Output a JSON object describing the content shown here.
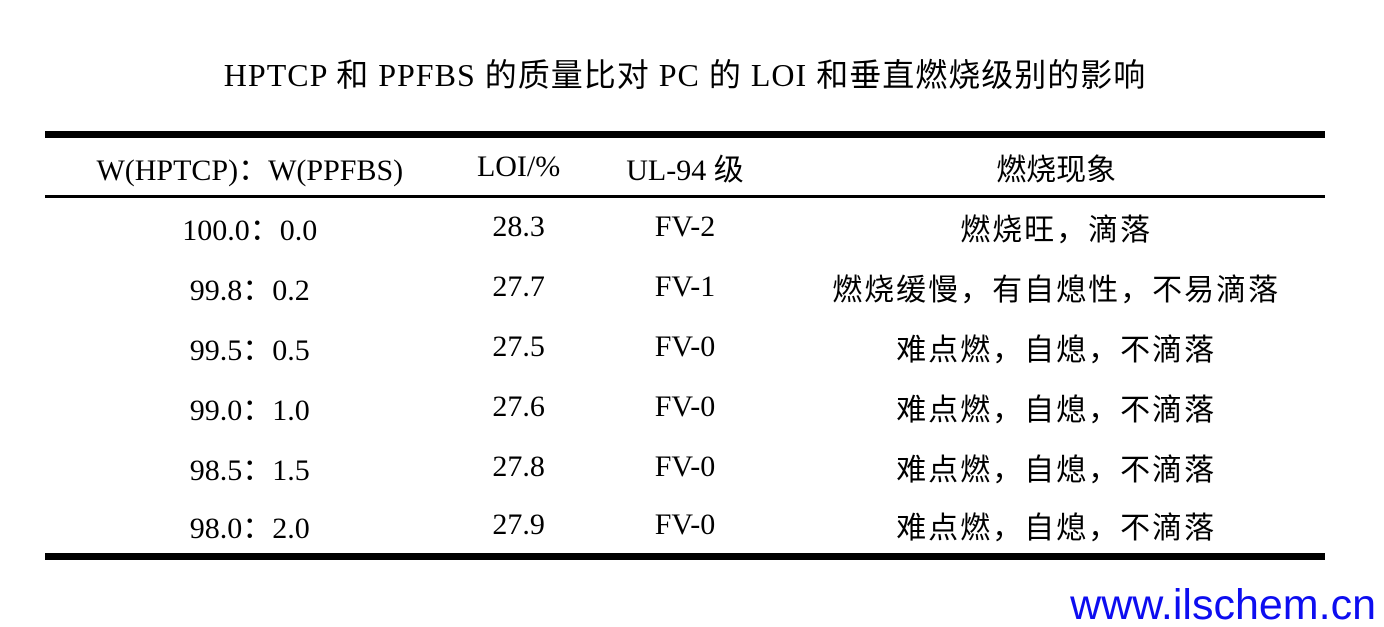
{
  "title": "HPTCP 和 PPFBS 的质量比对 PC 的 LOI 和垂直燃烧级别的影响",
  "table": {
    "headers": [
      "W(HPTCP)：W(PPFBS)",
      "LOI/%",
      "UL-94 级",
      "燃烧现象"
    ],
    "rows": [
      {
        "ratio": "100.0：0.0",
        "loi": "28.3",
        "ul94": "FV-2",
        "phenomenon": "燃烧旺，滴落"
      },
      {
        "ratio": "99.8：0.2",
        "loi": "27.7",
        "ul94": "FV-1",
        "phenomenon": "燃烧缓慢，有自熄性，不易滴落"
      },
      {
        "ratio": "99.5：0.5",
        "loi": "27.5",
        "ul94": "FV-0",
        "phenomenon": "难点燃，自熄，不滴落"
      },
      {
        "ratio": "99.0：1.0",
        "loi": "27.6",
        "ul94": "FV-0",
        "phenomenon": "难点燃，自熄，不滴落"
      },
      {
        "ratio": "98.5：1.5",
        "loi": "27.8",
        "ul94": "FV-0",
        "phenomenon": "难点燃，自熄，不滴落"
      },
      {
        "ratio": "98.0：2.0",
        "loi": "27.9",
        "ul94": "FV-0",
        "phenomenon": "难点燃，自熄，不滴落"
      }
    ]
  },
  "watermark": {
    "text": "www.ilschem.cn",
    "color": "#0d0df0"
  },
  "colors": {
    "background": "#ffffff",
    "text": "#000000",
    "rule": "#000000"
  }
}
